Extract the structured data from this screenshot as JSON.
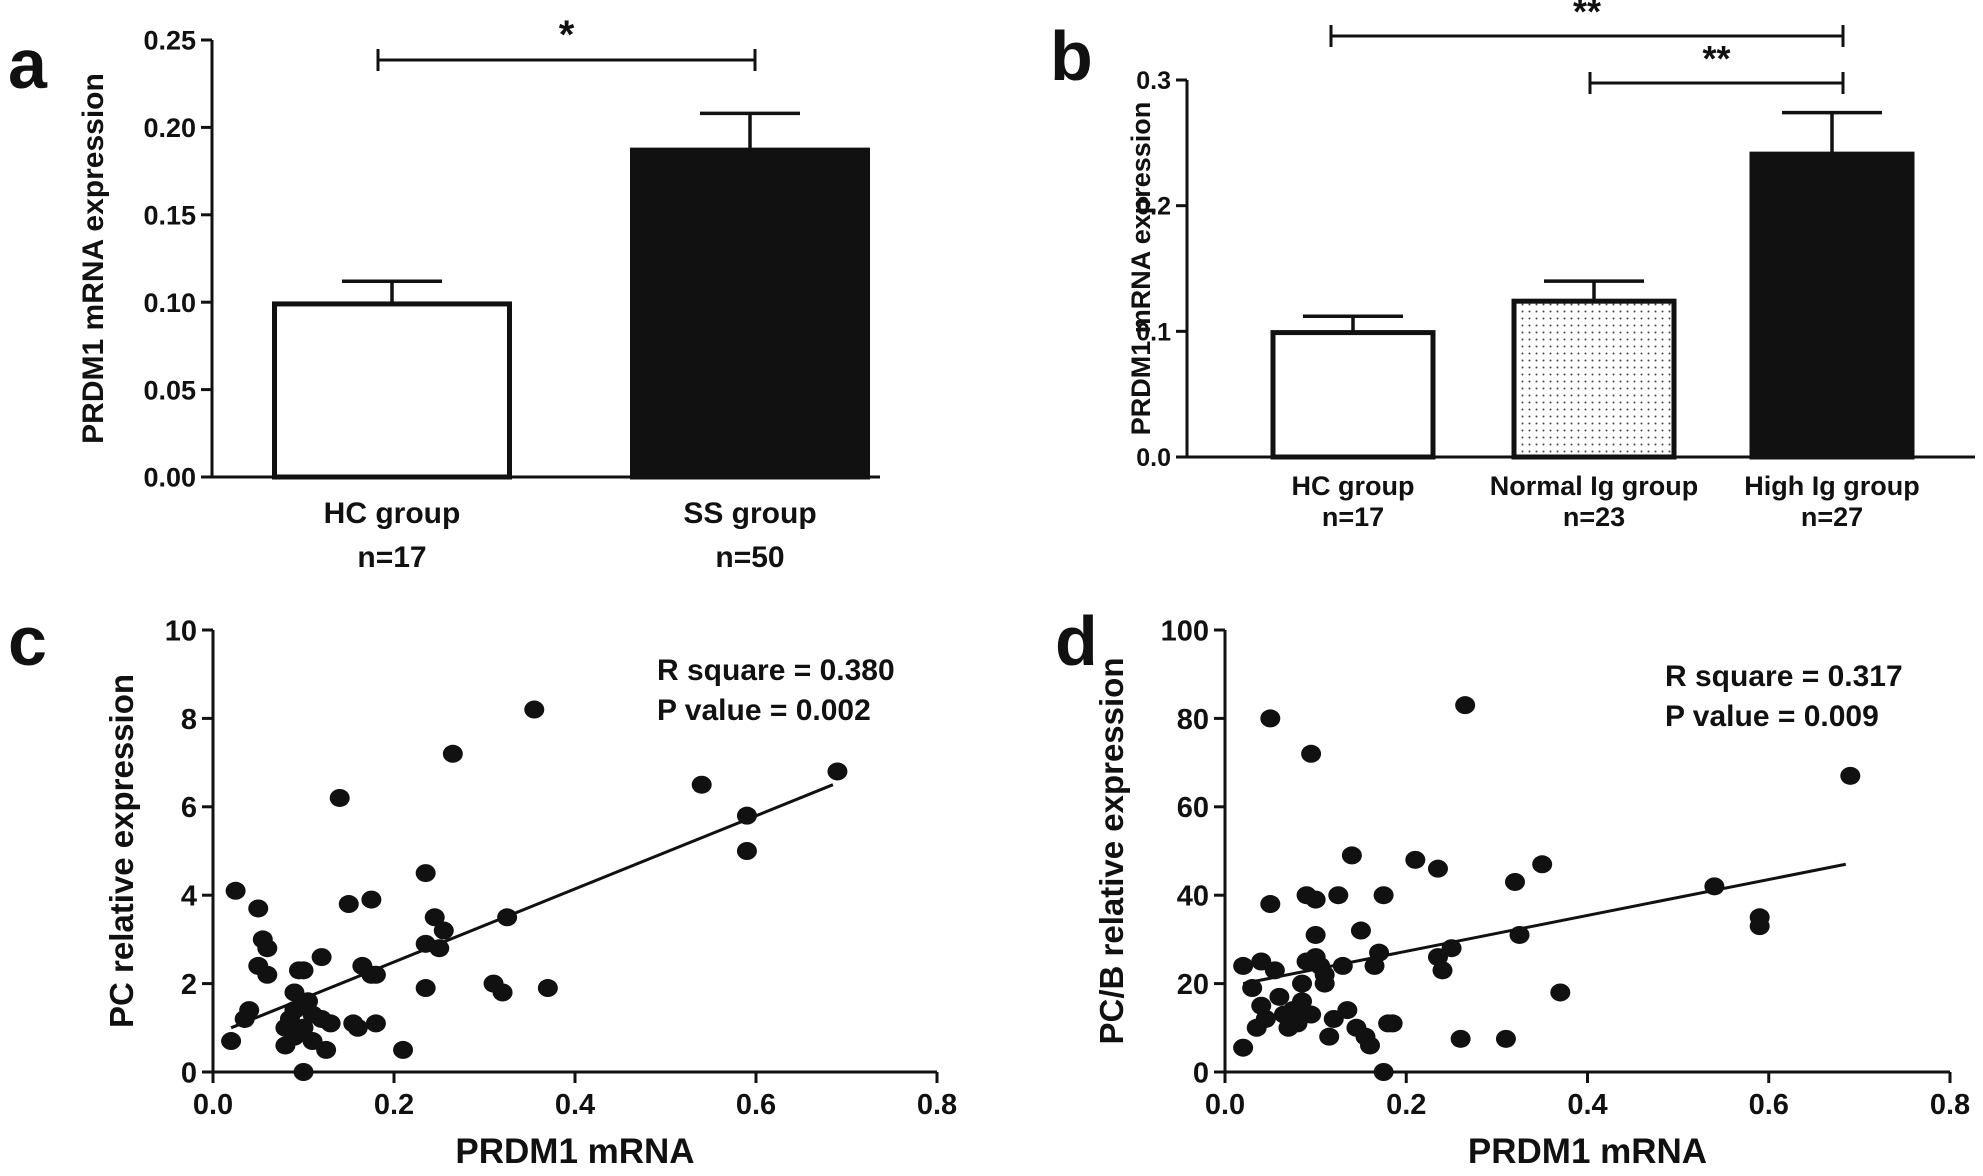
{
  "chart_data": [
    {
      "panel": "a",
      "type": "bar",
      "ylabel": "PRDM1 mRNA expression",
      "ylim": [
        0,
        0.25
      ],
      "yticks": [
        "0.00",
        "0.05",
        "0.10",
        "0.15",
        "0.20",
        "0.25"
      ],
      "categories": [
        "HC group",
        "SS group"
      ],
      "sublabels": [
        "n=17",
        "n=50"
      ],
      "values": [
        0.099,
        0.187
      ],
      "errors": [
        0.013,
        0.021
      ],
      "fills": [
        "#ffffff",
        "#111111"
      ],
      "significance": [
        {
          "from": 0,
          "to": 1,
          "label": "*"
        }
      ]
    },
    {
      "panel": "b",
      "type": "bar",
      "ylabel": "PRDM1 mRNA expression",
      "ylim": [
        0,
        0.3
      ],
      "yticks": [
        "0.0",
        "0.1",
        "0.2",
        "0.3"
      ],
      "categories": [
        "HC group",
        "Normal Ig group",
        "High Ig group"
      ],
      "sublabels": [
        "n=17",
        "n=23",
        "n=27"
      ],
      "values": [
        0.099,
        0.124,
        0.241
      ],
      "errors": [
        0.013,
        0.016,
        0.033
      ],
      "fills": [
        "#ffffff",
        "dots",
        "#111111"
      ],
      "significance": [
        {
          "from": 0,
          "to": 2,
          "label": "**"
        },
        {
          "from": 1,
          "to": 2,
          "label": "**"
        }
      ]
    },
    {
      "panel": "c",
      "type": "scatter",
      "xlabel": "PRDM1 mRNA",
      "ylabel": "PC relative expression",
      "xlim": [
        0,
        0.8
      ],
      "ylim": [
        0,
        10
      ],
      "xticks": [
        "0.0",
        "0.2",
        "0.4",
        "0.6",
        "0.8"
      ],
      "yticks": [
        "0",
        "2",
        "4",
        "6",
        "8",
        "10"
      ],
      "annotations": [
        "R square = 0.380",
        "P value = 0.002"
      ],
      "fit": {
        "x": [
          0.02,
          0.685
        ],
        "y": [
          1.0,
          6.5
        ]
      },
      "points": [
        [
          0.02,
          0.7
        ],
        [
          0.025,
          4.1
        ],
        [
          0.035,
          1.2
        ],
        [
          0.04,
          1.4
        ],
        [
          0.05,
          3.7
        ],
        [
          0.055,
          3.0
        ],
        [
          0.06,
          2.8
        ],
        [
          0.05,
          2.4
        ],
        [
          0.06,
          2.2
        ],
        [
          0.08,
          0.6
        ],
        [
          0.085,
          1.1
        ],
        [
          0.09,
          1.4
        ],
        [
          0.09,
          1.8
        ],
        [
          0.095,
          2.3
        ],
        [
          0.1,
          1.0
        ],
        [
          0.1,
          2.3
        ],
        [
          0.105,
          1.6
        ],
        [
          0.11,
          1.3
        ],
        [
          0.09,
          0.8
        ],
        [
          0.085,
          1.2
        ],
        [
          0.08,
          1.0
        ],
        [
          0.11,
          0.7
        ],
        [
          0.12,
          1.2
        ],
        [
          0.12,
          2.6
        ],
        [
          0.125,
          0.5
        ],
        [
          0.13,
          1.1
        ],
        [
          0.1,
          0.0
        ],
        [
          0.14,
          6.2
        ],
        [
          0.15,
          3.8
        ],
        [
          0.155,
          1.1
        ],
        [
          0.16,
          1.0
        ],
        [
          0.165,
          2.4
        ],
        [
          0.175,
          3.9
        ],
        [
          0.175,
          2.2
        ],
        [
          0.18,
          1.1
        ],
        [
          0.18,
          2.2
        ],
        [
          0.21,
          0.5
        ],
        [
          0.235,
          4.5
        ],
        [
          0.235,
          2.9
        ],
        [
          0.235,
          1.9
        ],
        [
          0.245,
          3.5
        ],
        [
          0.25,
          2.8
        ],
        [
          0.255,
          3.2
        ],
        [
          0.265,
          7.2
        ],
        [
          0.31,
          2.0
        ],
        [
          0.32,
          1.8
        ],
        [
          0.325,
          3.5
        ],
        [
          0.355,
          8.2
        ],
        [
          0.37,
          1.9
        ],
        [
          0.54,
          6.5
        ],
        [
          0.59,
          5.8
        ],
        [
          0.59,
          5.0
        ],
        [
          0.69,
          6.8
        ]
      ]
    },
    {
      "panel": "d",
      "type": "scatter",
      "xlabel": "PRDM1 mRNA",
      "ylabel": "PC/B relative expression",
      "xlim": [
        0,
        0.8
      ],
      "ylim": [
        0,
        100
      ],
      "xticks": [
        "0.0",
        "0.2",
        "0.4",
        "0.6",
        "0.8"
      ],
      "yticks": [
        "0",
        "20",
        "40",
        "60",
        "80",
        "100"
      ],
      "annotations": [
        "R square = 0.317",
        "P value = 0.009"
      ],
      "fit": {
        "x": [
          0.02,
          0.685
        ],
        "y": [
          20.0,
          47.0
        ]
      },
      "points": [
        [
          0.02,
          5.5
        ],
        [
          0.02,
          24.0
        ],
        [
          0.03,
          19.0
        ],
        [
          0.035,
          10.0
        ],
        [
          0.04,
          25.0
        ],
        [
          0.04,
          15.0
        ],
        [
          0.045,
          12.0
        ],
        [
          0.05,
          80.0
        ],
        [
          0.05,
          38.0
        ],
        [
          0.055,
          23.0
        ],
        [
          0.06,
          17.0
        ],
        [
          0.065,
          13.0
        ],
        [
          0.07,
          10.0
        ],
        [
          0.075,
          14.0
        ],
        [
          0.08,
          11.0
        ],
        [
          0.085,
          16.0
        ],
        [
          0.085,
          20.0
        ],
        [
          0.09,
          25.0
        ],
        [
          0.09,
          40.0
        ],
        [
          0.095,
          72.0
        ],
        [
          0.095,
          13.0
        ],
        [
          0.1,
          39.0
        ],
        [
          0.1,
          31.0
        ],
        [
          0.1,
          26.0
        ],
        [
          0.105,
          24.0
        ],
        [
          0.11,
          22.0
        ],
        [
          0.11,
          20.0
        ],
        [
          0.115,
          8.0
        ],
        [
          0.12,
          12.0
        ],
        [
          0.125,
          40.0
        ],
        [
          0.13,
          24.0
        ],
        [
          0.135,
          14.0
        ],
        [
          0.14,
          49.0
        ],
        [
          0.145,
          10.0
        ],
        [
          0.15,
          32.0
        ],
        [
          0.155,
          8.0
        ],
        [
          0.16,
          6.0
        ],
        [
          0.165,
          24.0
        ],
        [
          0.17,
          27.0
        ],
        [
          0.175,
          0.0
        ],
        [
          0.175,
          40.0
        ],
        [
          0.18,
          11.0
        ],
        [
          0.185,
          11.0
        ],
        [
          0.21,
          48.0
        ],
        [
          0.235,
          46.0
        ],
        [
          0.235,
          26.0
        ],
        [
          0.24,
          23.0
        ],
        [
          0.25,
          28.0
        ],
        [
          0.26,
          7.5
        ],
        [
          0.265,
          83.0
        ],
        [
          0.31,
          7.5
        ],
        [
          0.32,
          43.0
        ],
        [
          0.325,
          31.0
        ],
        [
          0.35,
          47.0
        ],
        [
          0.37,
          18.0
        ],
        [
          0.54,
          42.0
        ],
        [
          0.59,
          35.0
        ],
        [
          0.59,
          33.0
        ],
        [
          0.69,
          67.0
        ]
      ]
    }
  ]
}
